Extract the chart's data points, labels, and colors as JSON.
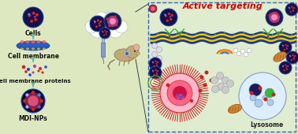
{
  "bg_color": "#e8f0d8",
  "bg_left": "#dde8c0",
  "bg_right": "#e8f0d8",
  "title_active": "Active targeting",
  "title_color": "#cc0000",
  "title_fs": 8,
  "label_lysosome": "Lysosome",
  "labels_left": [
    "Cells",
    "Cell membrane",
    "Cell membrane proteins",
    "MDI-NPs"
  ],
  "label_fs": 5.5,
  "arrow_color": "#66bbaa",
  "right_edge": "#3366bb",
  "figsize": [
    3.78,
    1.7
  ],
  "dpi": 100
}
